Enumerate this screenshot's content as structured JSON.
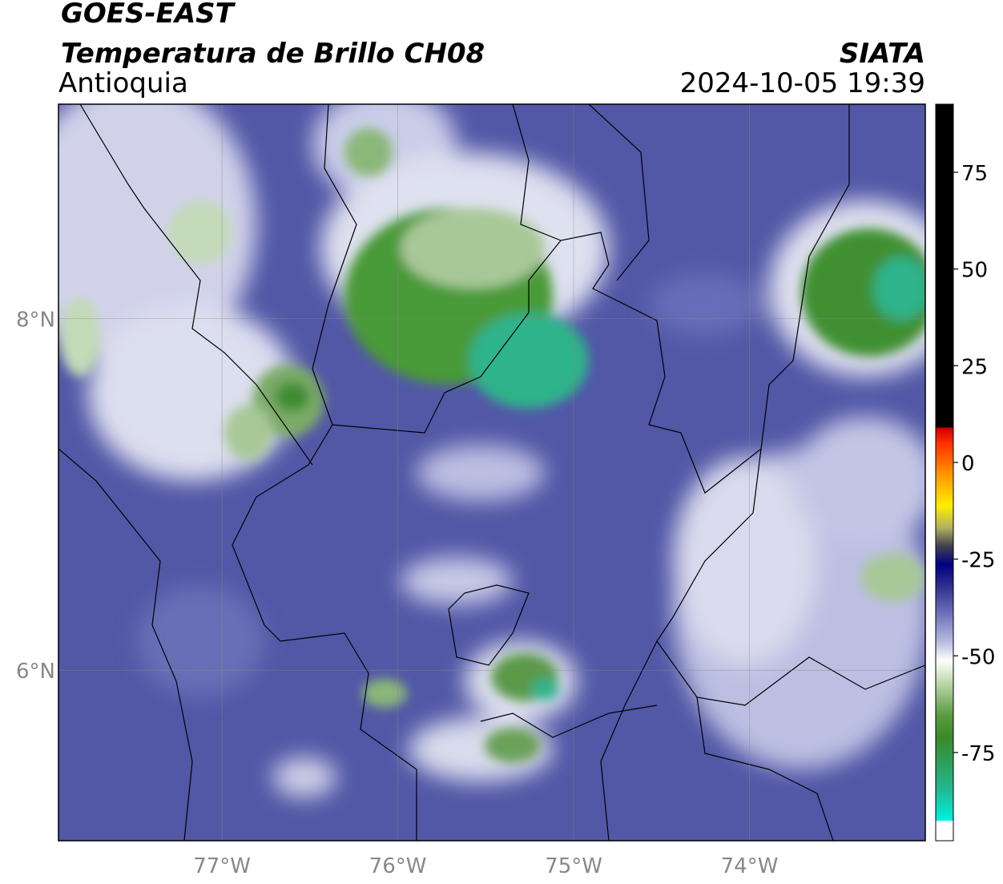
{
  "header": {
    "satellite": "GOES-EAST",
    "product": "Temperatura de Brillo CH08",
    "region": "Antioquia",
    "source": "SIATA",
    "timestamp": "2024-10-05 19:39"
  },
  "map": {
    "lat_lim": [
      5.03,
      9.22
    ],
    "lon_lim": [
      -77.93,
      -73.0
    ],
    "lat_ticks": [
      {
        "value": 8,
        "label": "8°N"
      },
      {
        "value": 6,
        "label": "6°N"
      }
    ],
    "lon_ticks": [
      {
        "value": -77,
        "label": "77°W"
      },
      {
        "value": -76,
        "label": "76°W"
      },
      {
        "value": -75,
        "label": "75°W"
      },
      {
        "value": -74,
        "label": "74°W"
      }
    ],
    "grid": true
  },
  "colorbar": {
    "lim": [
      -97.8,
      92.6
    ],
    "ticks": [
      75,
      50,
      25,
      0,
      -25,
      -50,
      -75
    ]
  }
}
